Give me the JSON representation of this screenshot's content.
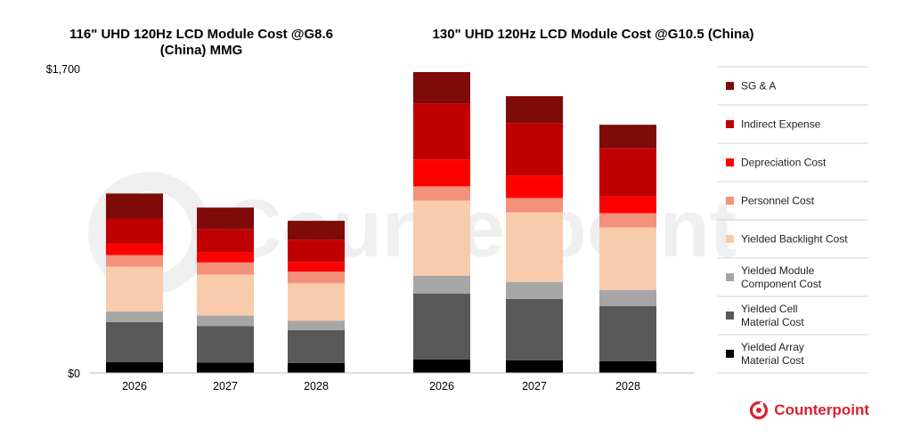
{
  "chart_data": [
    {
      "type": "bar",
      "stacked": true,
      "title": "116\" UHD 120Hz LCD Module Cost @G8.6 (China) MMG",
      "title_lines": [
        "116\" UHD 120Hz LCD Module Cost @G8.6",
        "(China) MMG"
      ],
      "categories": [
        "2026",
        "2027",
        "2028"
      ],
      "ylim": [
        0,
        1700
      ],
      "yticks": [
        "$0",
        "$1,700"
      ],
      "series": [
        {
          "name": "Yielded Array Material Cost",
          "values": [
            60,
            58,
            55
          ]
        },
        {
          "name": "Yielded Cell Material Cost",
          "values": [
            225,
            205,
            185
          ]
        },
        {
          "name": "Yielded Module Component Cost",
          "values": [
            60,
            58,
            52
          ]
        },
        {
          "name": "Yielded Backlight Cost",
          "values": [
            250,
            230,
            210
          ]
        },
        {
          "name": "Personnel Cost",
          "values": [
            65,
            68,
            65
          ]
        },
        {
          "name": "Depreciation Cost",
          "values": [
            65,
            57,
            55
          ]
        },
        {
          "name": "Indirect Expense",
          "values": [
            140,
            130,
            125
          ]
        },
        {
          "name": "SG & A",
          "values": [
            140,
            120,
            105
          ]
        }
      ]
    },
    {
      "type": "bar",
      "stacked": true,
      "title": "130\" UHD 120Hz LCD Module Cost @G10.5 (China)",
      "title_lines": [
        "130\" UHD 120Hz LCD Module Cost @G10.5 (China)"
      ],
      "categories": [
        "2026",
        "2027",
        "2028"
      ],
      "ylim": [
        0,
        1700
      ],
      "series": [
        {
          "name": "Yielded Array Material Cost",
          "values": [
            75,
            70,
            65
          ]
        },
        {
          "name": "Yielded Cell Material Cost",
          "values": [
            370,
            345,
            310
          ]
        },
        {
          "name": "Yielded Module Component Cost",
          "values": [
            100,
            95,
            90
          ]
        },
        {
          "name": "Yielded Backlight Cost",
          "values": [
            420,
            390,
            350
          ]
        },
        {
          "name": "Personnel Cost",
          "values": [
            80,
            80,
            80
          ]
        },
        {
          "name": "Depreciation Cost",
          "values": [
            150,
            125,
            95
          ]
        },
        {
          "name": "Indirect Expense",
          "values": [
            315,
            295,
            270
          ]
        },
        {
          "name": "SG & A",
          "values": [
            175,
            150,
            130
          ]
        }
      ]
    }
  ],
  "legend": [
    {
      "lines": [
        "SG & A"
      ],
      "color": "#7f0a0a"
    },
    {
      "lines": [
        "Indirect Expense"
      ],
      "color": "#c00000"
    },
    {
      "lines": [
        "Depreciation Cost"
      ],
      "color": "#ff0000"
    },
    {
      "lines": [
        "Personnel Cost"
      ],
      "color": "#f4917a"
    },
    {
      "lines": [
        "Yielded Backlight Cost"
      ],
      "color": "#f8cbad"
    },
    {
      "lines": [
        "Yielded Module",
        "Component Cost"
      ],
      "color": "#a6a6a6"
    },
    {
      "lines": [
        "Yielded Cell",
        "Material Cost"
      ],
      "color": "#595959"
    },
    {
      "lines": [
        "Yielded Array",
        "Material Cost"
      ],
      "color": "#000000"
    }
  ],
  "series_colors": [
    "#000000",
    "#595959",
    "#a6a6a6",
    "#f8cbad",
    "#f4917a",
    "#ff0000",
    "#c00000",
    "#7f0a0a"
  ],
  "watermark": "Counterpoint",
  "brand": {
    "name": "Counterpoint",
    "color": "#d9232e",
    "icon": "counterpoint-logo-icon"
  }
}
